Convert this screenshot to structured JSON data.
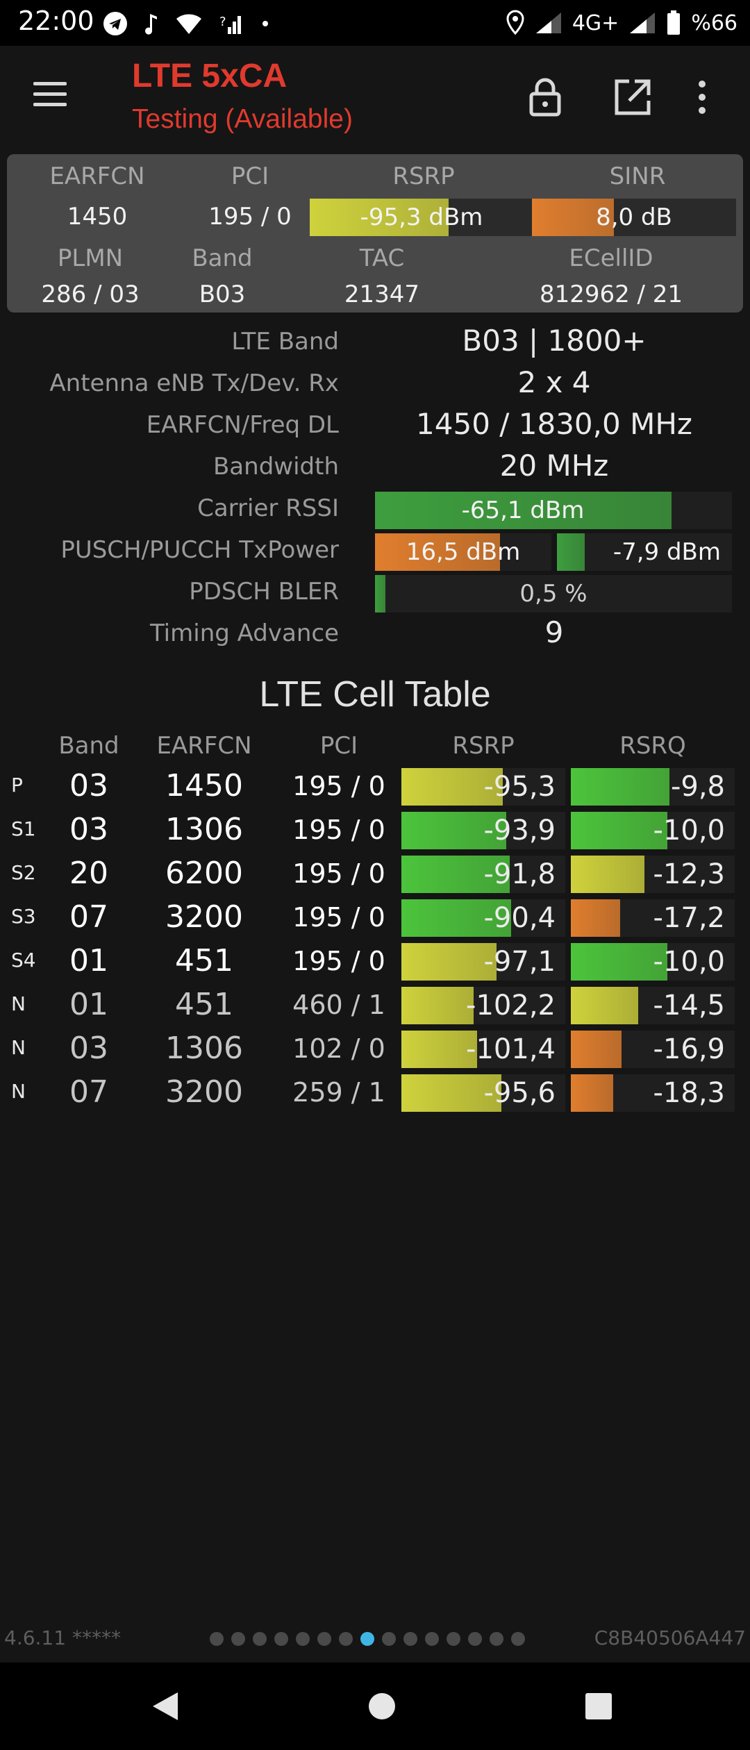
{
  "status_bar": {
    "time": "22:00",
    "left_icons": [
      "telegram-icon",
      "music-note-icon",
      "wifi-icon",
      "signal-question-icon",
      "dot-icon"
    ],
    "network": "4G+",
    "battery": "%66"
  },
  "toolbar": {
    "title": "LTE 5xCA",
    "subtitle": "Testing (Available)",
    "title_color": "#e03a2e"
  },
  "summary": {
    "labels": {
      "earfcn": "EARFCN",
      "pci": "PCI",
      "rsrp": "RSRP",
      "sinr": "SINR",
      "plmn": "PLMN",
      "band": "Band",
      "tac": "TAC",
      "ecellid": "ECellID"
    },
    "earfcn": "1450",
    "pci": "195 / 0",
    "rsrp": "-95,3 dBm",
    "rsrp_level": 0.62,
    "rsrp_color": "#cfd23c",
    "sinr": "8,0 dB",
    "sinr_level": 0.4,
    "sinr_color": "#e07e2e",
    "plmn": "286 / 03",
    "band": "B03",
    "tac": "21347",
    "ecellid": "812962 / 21"
  },
  "details": {
    "lte_band_label": "LTE Band",
    "lte_band": "B03 | 1800+",
    "antenna_label": "Antenna eNB Tx/Dev. Rx",
    "antenna": "2 x 4",
    "earfcn_freq_label": "EARFCN/Freq DL",
    "earfcn_freq": "1450 / 1830,0 MHz",
    "bandwidth_label": "Bandwidth",
    "bandwidth": "20 MHz",
    "rssi_label": "Carrier RSSI",
    "rssi": "-65,1 dBm",
    "rssi_level": 0.83,
    "rssi_color": "#3e9e3e",
    "txpower_label": "PUSCH/PUCCH TxPower",
    "pusch": "16,5 dBm",
    "pusch_level": 0.71,
    "pusch_color": "#e07e2e",
    "pucch": "-7,9 dBm",
    "pucch_level": 0.16,
    "pucch_color": "#3e9e3e",
    "bler_label": "PDSCH BLER",
    "bler": "0,5 %",
    "bler_level": 0.03,
    "bler_color": "#3e9e3e",
    "ta_label": "Timing Advance",
    "ta": "9"
  },
  "cell_table": {
    "title": "LTE Cell Table",
    "headers": {
      "band": "Band",
      "earfcn": "EARFCN",
      "pci": "PCI",
      "rsrp": "RSRP",
      "rsrq": "RSRQ"
    },
    "rows": [
      {
        "type": "P",
        "band": "03",
        "earfcn": "1450",
        "pci": "195 / 0",
        "rsrp": "-95,3",
        "rsrp_level": 0.62,
        "rsrp_color": "#cfd23c",
        "rsrq": "-9,8",
        "rsrq_level": 0.6,
        "rsrq_color": "#4cc43c",
        "primary": true
      },
      {
        "type": "S1",
        "band": "03",
        "earfcn": "1306",
        "pci": "195 / 0",
        "rsrp": "-93,9",
        "rsrp_level": 0.64,
        "rsrp_color": "#4cc43c",
        "rsrq": "-10,0",
        "rsrq_level": 0.59,
        "rsrq_color": "#4cc43c",
        "primary": true
      },
      {
        "type": "S2",
        "band": "20",
        "earfcn": "6200",
        "pci": "195 / 0",
        "rsrp": "-91,8",
        "rsrp_level": 0.66,
        "rsrp_color": "#4cc43c",
        "rsrq": "-12,3",
        "rsrq_level": 0.45,
        "rsrq_color": "#cfd23c",
        "primary": true
      },
      {
        "type": "S3",
        "band": "07",
        "earfcn": "3200",
        "pci": "195 / 0",
        "rsrp": "-90,4",
        "rsrp_level": 0.67,
        "rsrp_color": "#4cc43c",
        "rsrq": "-17,2",
        "rsrq_level": 0.3,
        "rsrq_color": "#e07e2e",
        "primary": true
      },
      {
        "type": "S4",
        "band": "01",
        "earfcn": "451",
        "pci": "195 / 0",
        "rsrp": "-97,1",
        "rsrp_level": 0.58,
        "rsrp_color": "#cfd23c",
        "rsrq": "-10,0",
        "rsrq_level": 0.59,
        "rsrq_color": "#4cc43c",
        "primary": true
      },
      {
        "type": "N",
        "band": "01",
        "earfcn": "451",
        "pci": "460 / 1",
        "rsrp": "-102,2",
        "rsrp_level": 0.44,
        "rsrp_color": "#cfd23c",
        "rsrq": "-14,5",
        "rsrq_level": 0.41,
        "rsrq_color": "#cfd23c",
        "primary": false
      },
      {
        "type": "N",
        "band": "03",
        "earfcn": "1306",
        "pci": "102 / 0",
        "rsrp": "-101,4",
        "rsrp_level": 0.46,
        "rsrp_color": "#cfd23c",
        "rsrq": "-16,9",
        "rsrq_level": 0.31,
        "rsrq_color": "#e07e2e",
        "primary": false
      },
      {
        "type": "N",
        "band": "07",
        "earfcn": "3200",
        "pci": "259 / 1",
        "rsrp": "-95,6",
        "rsrp_level": 0.61,
        "rsrp_color": "#cfd23c",
        "rsrq": "-18,3",
        "rsrq_level": 0.26,
        "rsrq_color": "#e07e2e",
        "primary": false
      }
    ]
  },
  "footer": {
    "version": "4.6.11 *****",
    "device_id": "C8B40506A447",
    "page_count": 15,
    "active_page": 8
  },
  "nav": [
    "back-icon",
    "home-icon",
    "recents-icon"
  ]
}
